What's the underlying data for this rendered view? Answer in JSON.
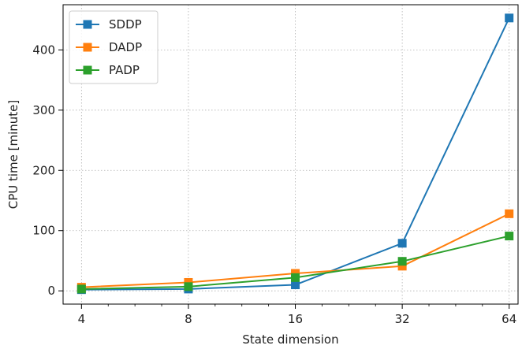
{
  "chart_data": {
    "type": "line",
    "xlabel": "State dimension",
    "ylabel": "CPU time [minute]",
    "x_scale": "log2",
    "x": [
      4,
      8,
      16,
      32,
      64
    ],
    "x_tick_labels": [
      "4",
      "8",
      "16",
      "32",
      "64"
    ],
    "y_ticks": [
      0,
      100,
      200,
      300,
      400
    ],
    "y_tick_labels": [
      "0",
      "100",
      "200",
      "300",
      "400"
    ],
    "ylim": [
      -22,
      475
    ],
    "grid": true,
    "legend_position": "top-left",
    "marker": "square",
    "series": [
      {
        "name": "SDDP",
        "color": "#1f77b4",
        "values": [
          2,
          3,
          10,
          79,
          453
        ]
      },
      {
        "name": "DADP",
        "color": "#ff7f0e",
        "values": [
          6,
          14,
          29,
          41,
          128
        ]
      },
      {
        "name": "PADP",
        "color": "#2ca02c",
        "values": [
          3,
          7,
          22,
          49,
          91
        ]
      }
    ]
  }
}
